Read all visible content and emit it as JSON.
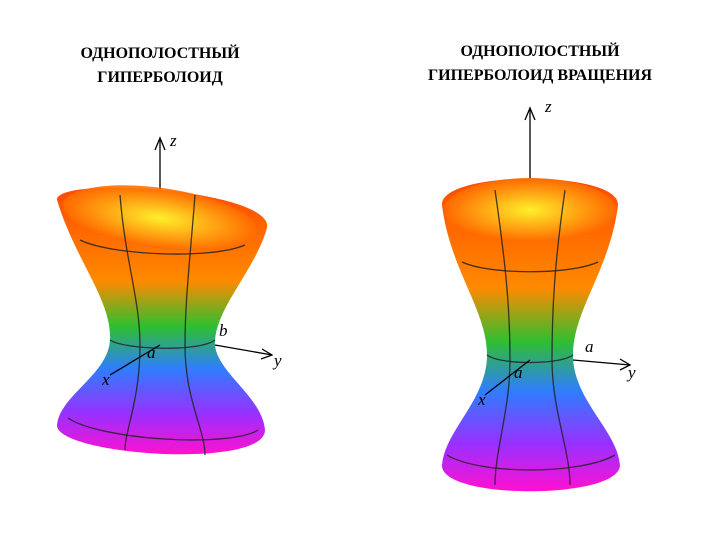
{
  "left": {
    "title": [
      "ОДНОПОЛОСТНЫЙ",
      "ГИПЕРБОЛОИД"
    ],
    "axes": {
      "z": "z",
      "b": "b",
      "a": "a",
      "y": "y",
      "x": "x"
    }
  },
  "right": {
    "title": [
      "ОДНОПОЛОСТНЫЙ",
      "ГИПЕРБОЛОИД ВРАЩЕНИЯ"
    ],
    "axes": {
      "z": "z",
      "a1": "a",
      "a2": "a",
      "y": "y",
      "x": "x"
    }
  }
}
